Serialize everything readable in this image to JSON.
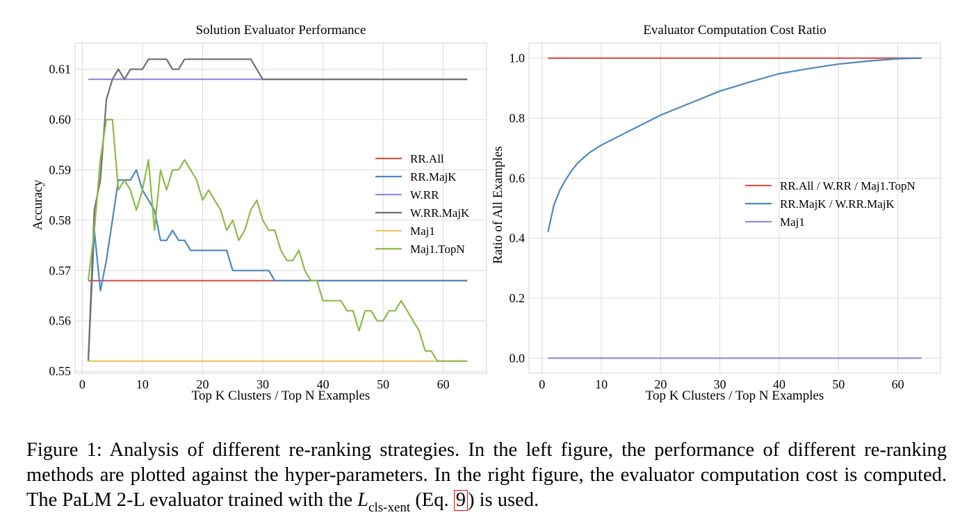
{
  "chart_data": [
    {
      "type": "line",
      "title": "Solution Evaluator Performance",
      "xlabel": "Top K Clusters / Top N Examples",
      "ylabel": "Accuracy",
      "xlim": [
        -1.2,
        67.2
      ],
      "ylim": [
        0.5496,
        0.6152
      ],
      "xticks": [
        0,
        10,
        20,
        30,
        40,
        50,
        60
      ],
      "yticks": [
        0.55,
        0.56,
        0.57,
        0.58,
        0.59,
        0.6,
        0.61
      ],
      "ytick_labels": [
        "0.55",
        "0.56",
        "0.57",
        "0.58",
        "0.59",
        "0.60",
        "0.61"
      ],
      "grid": true,
      "legend_position": "center-right",
      "series": [
        {
          "name": "RR.All",
          "color": "#d9534a",
          "x": [
            1,
            64
          ],
          "y": [
            0.568,
            0.568
          ]
        },
        {
          "name": "RR.MajK",
          "color": "#4b87bd",
          "x": [
            1,
            2,
            3,
            4,
            5,
            6,
            7,
            8,
            9,
            10,
            11,
            12,
            13,
            14,
            15,
            16,
            17,
            18,
            19,
            20,
            21,
            22,
            23,
            24,
            25,
            26,
            27,
            28,
            29,
            30,
            31,
            32,
            64
          ],
          "y": [
            0.552,
            0.578,
            0.566,
            0.572,
            0.58,
            0.588,
            0.588,
            0.588,
            0.59,
            0.586,
            0.584,
            0.582,
            0.576,
            0.576,
            0.578,
            0.576,
            0.576,
            0.574,
            0.574,
            0.574,
            0.574,
            0.574,
            0.574,
            0.574,
            0.57,
            0.57,
            0.57,
            0.57,
            0.57,
            0.57,
            0.57,
            0.568,
            0.568
          ]
        },
        {
          "name": "W.RR",
          "color": "#9a8ad6",
          "x": [
            1,
            64
          ],
          "y": [
            0.608,
            0.608
          ]
        },
        {
          "name": "W.RR.MajK",
          "color": "#6e6e6e",
          "x": [
            1,
            2,
            3,
            4,
            5,
            6,
            7,
            8,
            9,
            10,
            11,
            12,
            13,
            14,
            15,
            16,
            17,
            18,
            19,
            20,
            21,
            22,
            23,
            24,
            25,
            26,
            27,
            28,
            29,
            30,
            64
          ],
          "y": [
            0.552,
            0.582,
            0.588,
            0.604,
            0.608,
            0.61,
            0.608,
            0.61,
            0.61,
            0.61,
            0.612,
            0.612,
            0.612,
            0.612,
            0.61,
            0.61,
            0.612,
            0.612,
            0.612,
            0.612,
            0.612,
            0.612,
            0.612,
            0.612,
            0.612,
            0.612,
            0.612,
            0.612,
            0.61,
            0.608,
            0.608
          ]
        },
        {
          "name": "Maj1",
          "color": "#ebc36a",
          "x": [
            1,
            64
          ],
          "y": [
            0.552,
            0.552
          ]
        },
        {
          "name": "Maj1.TopN",
          "color": "#8cba4a",
          "x": [
            1,
            2,
            3,
            4,
            5,
            6,
            7,
            8,
            9,
            10,
            11,
            12,
            13,
            14,
            15,
            16,
            17,
            18,
            19,
            20,
            21,
            22,
            23,
            24,
            25,
            26,
            27,
            28,
            29,
            30,
            31,
            32,
            33,
            34,
            35,
            36,
            37,
            38,
            39,
            40,
            41,
            42,
            43,
            44,
            45,
            46,
            47,
            48,
            49,
            50,
            51,
            52,
            53,
            54,
            55,
            56,
            57,
            58,
            59,
            60,
            61,
            62,
            63,
            64
          ],
          "y": [
            0.568,
            0.578,
            0.592,
            0.6,
            0.6,
            0.586,
            0.588,
            0.586,
            0.582,
            0.586,
            0.592,
            0.578,
            0.59,
            0.586,
            0.59,
            0.59,
            0.592,
            0.59,
            0.588,
            0.584,
            0.586,
            0.584,
            0.582,
            0.578,
            0.58,
            0.576,
            0.578,
            0.582,
            0.584,
            0.58,
            0.578,
            0.578,
            0.574,
            0.572,
            0.572,
            0.574,
            0.57,
            0.568,
            0.568,
            0.564,
            0.564,
            0.564,
            0.564,
            0.562,
            0.562,
            0.558,
            0.562,
            0.562,
            0.56,
            0.56,
            0.562,
            0.562,
            0.564,
            0.562,
            0.56,
            0.558,
            0.554,
            0.554,
            0.552,
            0.552,
            0.552,
            0.552,
            0.552,
            0.552
          ]
        }
      ]
    },
    {
      "type": "line",
      "title": "Evaluator Computation Cost Ratio",
      "xlabel": "Top K Clusters / Top N Examples",
      "ylabel": "Ratio of All Examples",
      "xlim": [
        -2.2,
        67.2
      ],
      "ylim": [
        -0.05,
        1.05
      ],
      "xticks": [
        0,
        10,
        20,
        30,
        40,
        50,
        60
      ],
      "yticks": [
        0.0,
        0.2,
        0.4,
        0.6,
        0.8,
        1.0
      ],
      "ytick_labels": [
        "0.0",
        "0.2",
        "0.4",
        "0.6",
        "0.8",
        "1.0"
      ],
      "grid": true,
      "legend_position": "center-right",
      "series": [
        {
          "name": "RR.All / W.RR / Maj1.TopN",
          "color": "#d9534a",
          "x": [
            1,
            64
          ],
          "y": [
            1.0,
            1.0
          ]
        },
        {
          "name": "RR.MajK / W.RR.MajK",
          "color": "#4b87bd",
          "x": [
            1,
            2,
            3,
            4,
            5,
            6,
            8,
            10,
            12,
            15,
            20,
            25,
            30,
            35,
            40,
            45,
            50,
            55,
            60,
            64
          ],
          "y": [
            0.42,
            0.51,
            0.56,
            0.595,
            0.625,
            0.65,
            0.685,
            0.71,
            0.73,
            0.76,
            0.81,
            0.85,
            0.89,
            0.92,
            0.948,
            0.965,
            0.98,
            0.99,
            0.998,
            1.0
          ]
        },
        {
          "name": "Maj1",
          "color": "#9a8ad6",
          "x": [
            1,
            64
          ],
          "y": [
            0.0,
            0.0
          ]
        }
      ]
    }
  ],
  "caption": {
    "part1": "Figure 1: Analysis of different re-ranking strategies. In the left figure, the performance of different re-ranking methods are plotted against the hyper-parameters. In the right figure, the evaluator computation cost is computed. The PaLM 2-L evaluator trained with the ",
    "symbol": "L",
    "symbol_sub": "cls-xent",
    "part2": " (Eq. ",
    "eq_ref": "9",
    "part3": ") is used."
  }
}
